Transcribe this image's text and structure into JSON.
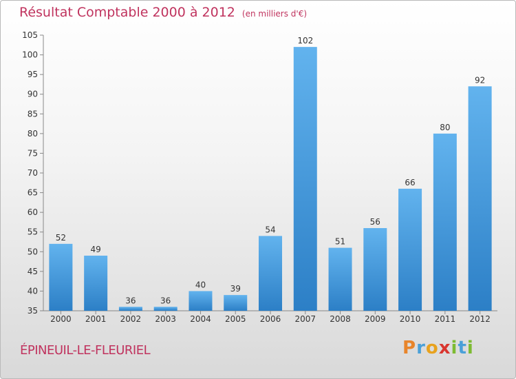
{
  "chart_data": {
    "type": "bar",
    "title": "Résultat Comptable 2000 à 2012",
    "subtitle": "(en milliers d'€)",
    "xlabel": "",
    "ylabel": "",
    "categories": [
      "2000",
      "2001",
      "2002",
      "2003",
      "2004",
      "2005",
      "2006",
      "2007",
      "2008",
      "2009",
      "2010",
      "2011",
      "2012"
    ],
    "values": [
      52,
      49,
      36,
      36,
      40,
      39,
      54,
      102,
      51,
      56,
      66,
      80,
      92
    ],
    "ylim": [
      35,
      105
    ],
    "yticks": [
      35,
      40,
      45,
      50,
      55,
      60,
      65,
      70,
      75,
      80,
      85,
      90,
      95,
      100,
      105
    ],
    "bar_color": "#3a8fd6",
    "grid": false
  },
  "footer": {
    "commune": "ÉPINEUIL-LE-FLEURIEL",
    "brand_letters": [
      "P",
      "r",
      "o",
      "x",
      "i",
      "t",
      "i"
    ],
    "brand_colors": [
      "#e8852b",
      "#4aa0d8",
      "#e8a21e",
      "#d9362f",
      "#7dbb32",
      "#4aa0d8",
      "#7dbb32"
    ]
  }
}
